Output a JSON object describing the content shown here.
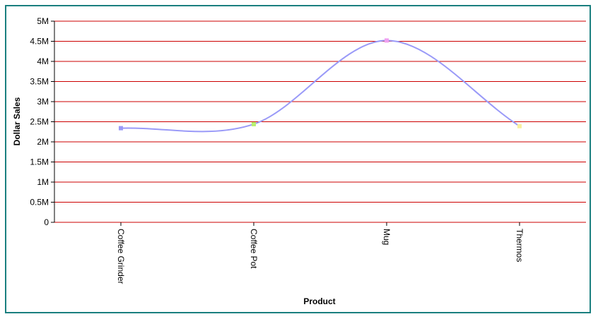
{
  "chart_data": {
    "type": "line",
    "title": "",
    "xlabel": "Product",
    "ylabel": "Dollar Sales",
    "categories": [
      "Coffee Grinder",
      "Coffee Pot",
      "Mug",
      "Thermos"
    ],
    "series": [
      {
        "values": [
          2340000,
          2440000,
          4520000,
          2390000
        ],
        "color": "#9a9af8",
        "marker_colors": [
          "#9a9af8",
          "#b8f070",
          "#f0a0f0",
          "#f8f0a0"
        ]
      }
    ],
    "y_ticks": [
      "0",
      "0.5M",
      "1M",
      "1.5M",
      "2M",
      "2.5M",
      "3M",
      "3.5M",
      "4M",
      "4.5M",
      "5M"
    ],
    "ylim": [
      0,
      5000000
    ],
    "y_step": 500000,
    "grid": true,
    "grid_color": "#cc0000",
    "line_style": "smooth",
    "legend": "none"
  },
  "frame": {
    "border_color": "#1a7f7f"
  }
}
